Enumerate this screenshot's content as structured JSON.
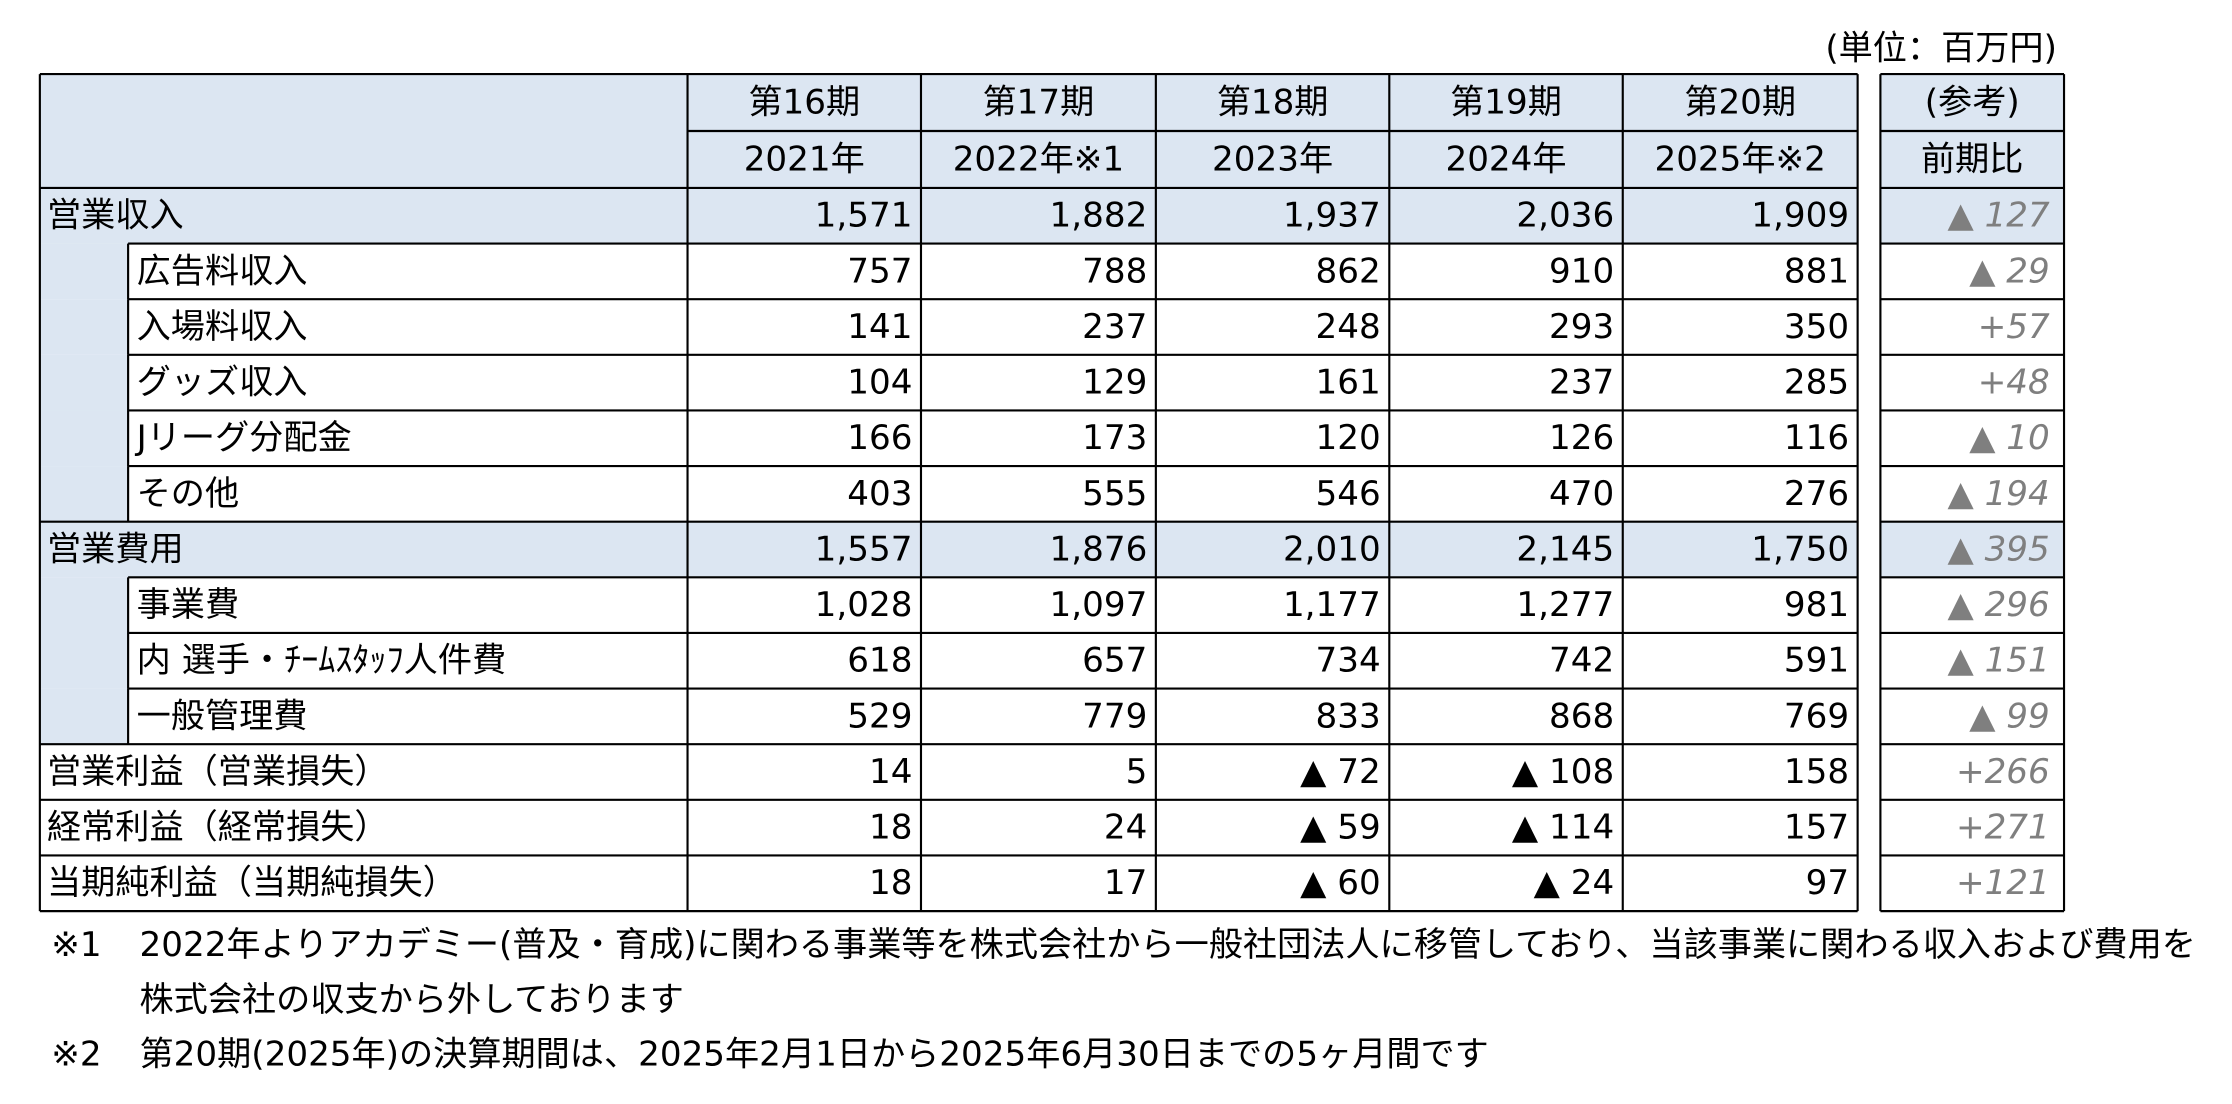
{
  "unit": "(単位：百万円)",
  "header": {
    "periods": [
      {
        "term": "第16期",
        "year": "2021年"
      },
      {
        "term": "第17期",
        "year": "2022年※1"
      },
      {
        "term": "第18期",
        "year": "2023年"
      },
      {
        "term": "第19期",
        "year": "2024年"
      },
      {
        "term": "第20期",
        "year": "2025年※2"
      }
    ],
    "reference": {
      "line1": "(参考)",
      "line2": "前期比"
    }
  },
  "rows": [
    {
      "label": "営業収入",
      "values": [
        "1,571",
        "1,882",
        "1,937",
        "2,036",
        "1,909"
      ],
      "change": "▲ 127",
      "children": [
        {
          "label": "広告料収入",
          "values": [
            "757",
            "788",
            "862",
            "910",
            "881"
          ],
          "change": "▲ 29"
        },
        {
          "label": "入場料収入",
          "values": [
            "141",
            "237",
            "248",
            "293",
            "350"
          ],
          "change": "+57"
        },
        {
          "label": "グッズ収入",
          "values": [
            "104",
            "129",
            "161",
            "237",
            "285"
          ],
          "change": "+48"
        },
        {
          "label": "Jリーグ分配金",
          "values": [
            "166",
            "173",
            "120",
            "126",
            "116"
          ],
          "change": "▲ 10"
        },
        {
          "label": "その他",
          "values": [
            "403",
            "555",
            "546",
            "470",
            "276"
          ],
          "change": "▲ 194"
        }
      ]
    },
    {
      "label": "営業費用",
      "values": [
        "1,557",
        "1,876",
        "2,010",
        "2,145",
        "1,750"
      ],
      "change": "▲ 395",
      "children": [
        {
          "label": "事業費",
          "values": [
            "1,028",
            "1,097",
            "1,177",
            "1,277",
            "981"
          ],
          "change": "▲ 296"
        },
        {
          "label": "内 選手・ﾁｰﾑｽﾀｯﾌ人件費",
          "values": [
            "618",
            "657",
            "734",
            "742",
            "591"
          ],
          "change": "▲ 151"
        },
        {
          "label": "一般管理費",
          "values": [
            "529",
            "779",
            "833",
            "868",
            "769"
          ],
          "change": "▲ 99"
        }
      ]
    },
    {
      "label": "営業利益（営業損失）",
      "values": [
        "14",
        "5",
        "▲ 72",
        "▲ 108",
        "158"
      ],
      "change": "+266"
    },
    {
      "label": "経常利益（経常損失）",
      "values": [
        "18",
        "24",
        "▲ 59",
        "▲ 114",
        "157"
      ],
      "change": "+271"
    },
    {
      "label": "当期純利益（当期純損失）",
      "values": [
        "18",
        "17",
        "▲ 60",
        "▲ 24",
        "97"
      ],
      "change": "+121"
    }
  ],
  "notes": [
    {
      "mark": "※1",
      "lines": [
        "2022年よりアカデミー(普及・育成)に関わる事業等を株式会社から一般社団法人に移管しており、当該事業に関わる収入および費用を",
        "株式会社の収支から外しております"
      ]
    },
    {
      "mark": "※2",
      "lines": [
        "第20期(2025年)の決算期間は、2025年2月1日から2025年6月30日までの5ヶ月間です"
      ]
    }
  ]
}
